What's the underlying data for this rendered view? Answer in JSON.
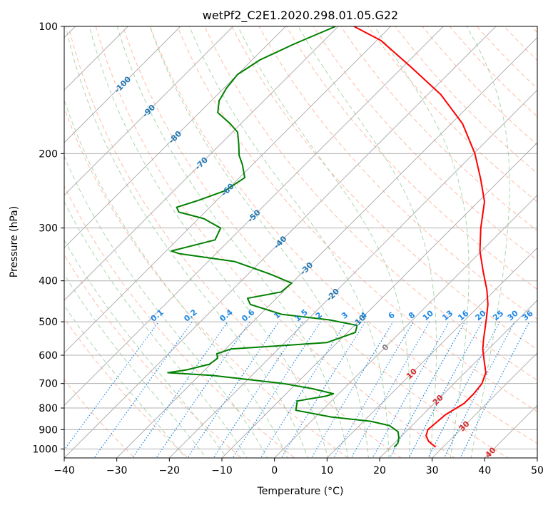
{
  "chart_data": {
    "type": "line",
    "title": "wetPf2_C2E1.2020.298.01.05.G22",
    "xlabel": "Temperature (°C)",
    "ylabel": "Pressure (hPa)",
    "xlim": [
      -40,
      50
    ],
    "ylim": [
      1050,
      100
    ],
    "yscale": "log",
    "x_ticks": [
      -40,
      -30,
      -20,
      -10,
      0,
      10,
      20,
      30,
      40,
      50
    ],
    "y_ticks": [
      100,
      200,
      300,
      400,
      500,
      600,
      700,
      800,
      900,
      1000
    ],
    "grid": true,
    "skew": "isotherms skewed 45 degrees",
    "series": [
      {
        "role": "temperature",
        "color": "#ff0000",
        "points": [
          [
            28.6,
            990
          ],
          [
            26.2,
            960
          ],
          [
            24.6,
            930
          ],
          [
            23.8,
            900
          ],
          [
            24.0,
            870
          ],
          [
            24.3,
            830
          ],
          [
            25.7,
            780
          ],
          [
            25.7,
            740
          ],
          [
            25.3,
            700
          ],
          [
            24.0,
            660
          ],
          [
            21.5,
            620
          ],
          [
            18.9,
            580
          ],
          [
            17.2,
            550
          ],
          [
            15.5,
            520
          ],
          [
            13.7,
            490
          ],
          [
            11.4,
            455
          ],
          [
            8.4,
            420
          ],
          [
            4.2,
            380
          ],
          [
            -0.3,
            340
          ],
          [
            -4.5,
            300
          ],
          [
            -8.8,
            260
          ],
          [
            -13.8,
            230
          ],
          [
            -19.8,
            200
          ],
          [
            -27.8,
            170
          ],
          [
            -37.5,
            145
          ],
          [
            -48.3,
            125
          ],
          [
            -59.2,
            108
          ],
          [
            -67.0,
            100
          ]
        ]
      },
      {
        "role": "dewpoint",
        "color": "#008000",
        "points": [
          [
            20.7,
            990
          ],
          [
            20.7,
            970
          ],
          [
            19.8,
            940
          ],
          [
            18.5,
            910
          ],
          [
            15.7,
            880
          ],
          [
            11.3,
            860
          ],
          [
            3.0,
            840
          ],
          [
            -5.0,
            810
          ],
          [
            -6.5,
            770
          ],
          [
            -2.0,
            750
          ],
          [
            -1.0,
            740
          ],
          [
            -6.0,
            720
          ],
          [
            -12.5,
            700
          ],
          [
            -27.5,
            670
          ],
          [
            -36.5,
            660
          ],
          [
            -33.5,
            650
          ],
          [
            -30.2,
            630
          ],
          [
            -29.8,
            610
          ],
          [
            -30.8,
            595
          ],
          [
            -29.0,
            580
          ],
          [
            -12.0,
            560
          ],
          [
            -8.5,
            530
          ],
          [
            -9.5,
            510
          ],
          [
            -15.8,
            495
          ],
          [
            -26.0,
            480
          ],
          [
            -33.8,
            455
          ],
          [
            -35.5,
            440
          ],
          [
            -30.3,
            425
          ],
          [
            -30.0,
            405
          ],
          [
            -36.0,
            385
          ],
          [
            -45.0,
            360
          ],
          [
            -57.0,
            345
          ],
          [
            -59.0,
            340
          ],
          [
            -52.8,
            320
          ],
          [
            -54.0,
            300
          ],
          [
            -59.0,
            285
          ],
          [
            -65.0,
            275
          ],
          [
            -66.3,
            268
          ],
          [
            -63.5,
            258
          ],
          [
            -60.3,
            245
          ],
          [
            -59.0,
            228
          ],
          [
            -62.0,
            212
          ],
          [
            -64.3,
            202
          ],
          [
            -66.5,
            190
          ],
          [
            -69.0,
            178
          ],
          [
            -72.0,
            170
          ],
          [
            -76.5,
            160
          ],
          [
            -78.5,
            150
          ],
          [
            -79.5,
            140
          ],
          [
            -80.0,
            130
          ],
          [
            -78.5,
            120
          ],
          [
            -75.0,
            110
          ],
          [
            -70.5,
            100
          ]
        ]
      }
    ],
    "annotations": {
      "isotherm_labels": [
        "-100",
        "-90",
        "-80",
        "-70",
        "-60",
        "-50",
        "-40",
        "-30",
        "-20",
        "-10",
        "0",
        "10",
        "20",
        "30",
        "40"
      ],
      "mixing_ratio_labels": [
        "0.1",
        "0.2",
        "0.4",
        "0.6",
        "1",
        "1.5",
        "2",
        "3",
        "4",
        "6",
        "8",
        "10",
        "13",
        "16",
        "20",
        "25",
        "30",
        "36"
      ]
    }
  },
  "colors": {
    "temperature": "#ff0000",
    "dewpoint": "#008000",
    "isotherm_label_cold": "#1f77b4",
    "isotherm_label_warm": "#d62728",
    "isotherm_label_zero": "#7f7f7f",
    "mixing_ratio": "#1e88e5",
    "dry_adiabat": "#ff9f80",
    "moist_adiabat": "#90c890",
    "grid": "#b0b0b0"
  }
}
